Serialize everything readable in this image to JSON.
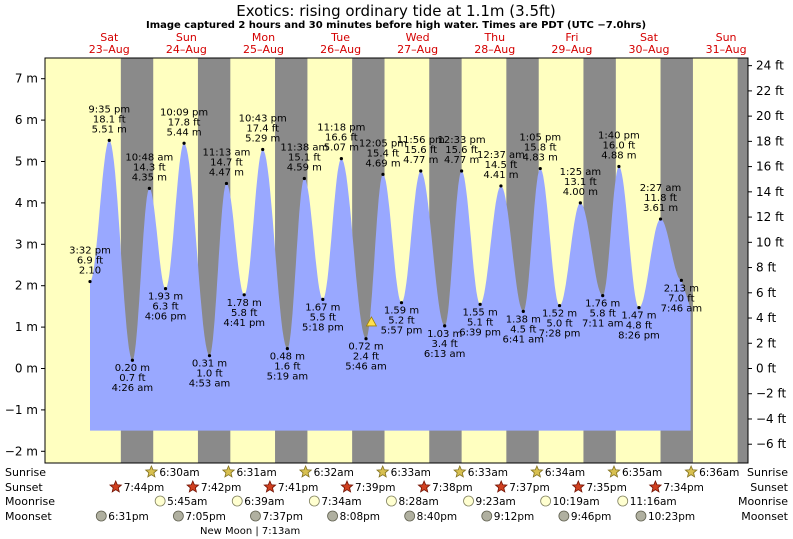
{
  "title": "Exotics: rising  ordinary tide at 1.1m (3.5ft)",
  "subtitle": "Image captured 2 hours and 30 minutes before high water. Times are PDT (UTC −7.0hrs)",
  "colors": {
    "day": "#ffffc0",
    "night": "#8a8a8a",
    "water": "#99a8ff",
    "header_red": "#d40000"
  },
  "chart_data": {
    "type": "area",
    "ylabel_left_unit": "m",
    "ylabel_right_unit": "ft",
    "ylim_m": [
      -2.2,
      7.5
    ],
    "y_ticks_m": [
      "7 m",
      "6 m",
      "5 m",
      "4 m",
      "3 m",
      "2 m",
      "1 m",
      "0 m",
      "−1 m",
      "−2 m"
    ],
    "y_ticks_m_values": [
      7,
      6,
      5,
      4,
      3,
      2,
      1,
      0,
      -1,
      -2
    ],
    "y_ticks_ft": [
      "24 ft",
      "22 ft",
      "20 ft",
      "18 ft",
      "16 ft",
      "14 ft",
      "12 ft",
      "10 ft",
      "8 ft",
      "6 ft",
      "4 ft",
      "2 ft",
      "0 ft",
      "−2 ft",
      "−4 ft",
      "−6 ft"
    ],
    "y_ticks_ft_values": [
      24,
      22,
      20,
      18,
      16,
      14,
      12,
      10,
      8,
      6,
      4,
      2,
      0,
      -2,
      -4,
      -6
    ],
    "current_level_m": 1.1,
    "days": [
      {
        "dow": "Sat",
        "date": "23–Aug"
      },
      {
        "dow": "Sun",
        "date": "24–Aug"
      },
      {
        "dow": "Mon",
        "date": "25–Aug"
      },
      {
        "dow": "Tue",
        "date": "26–Aug"
      },
      {
        "dow": "Wed",
        "date": "27–Aug"
      },
      {
        "dow": "Thu",
        "date": "28–Aug"
      },
      {
        "dow": "Fri",
        "date": "29–Aug"
      },
      {
        "dow": "Sat",
        "date": "30–Aug"
      },
      {
        "dow": "Sun",
        "date": "31–Aug"
      }
    ],
    "tides": [
      {
        "day": 0.0,
        "h": 2.1,
        "m": "2.10",
        "ft": "6.9 ft",
        "time": "3:32 pm",
        "pos": "above"
      },
      {
        "day": 0.25,
        "h": 5.51,
        "m": "5.51 m",
        "ft": "18.1 ft",
        "time": "9:35 pm",
        "pos": "above"
      },
      {
        "day": 0.55,
        "h": 0.2,
        "m": "0.20 m",
        "ft": "0.7 ft",
        "time": "4:26 am",
        "pos": "below"
      },
      {
        "day": 0.77,
        "h": 4.35,
        "m": "4.35 m",
        "ft": "14.3 ft",
        "time": "10:48 am",
        "pos": "above"
      },
      {
        "day": 0.98,
        "h": 1.93,
        "m": "1.93 m",
        "ft": "6.3 ft",
        "time": "4:06 pm",
        "pos": "below"
      },
      {
        "day": 1.22,
        "h": 5.44,
        "m": "5.44 m",
        "ft": "17.8 ft",
        "time": "10:09 pm",
        "pos": "above"
      },
      {
        "day": 1.55,
        "h": 0.31,
        "m": "0.31 m",
        "ft": "1.0 ft",
        "time": "4:53 am",
        "pos": "below"
      },
      {
        "day": 1.77,
        "h": 4.47,
        "m": "4.47 m",
        "ft": "14.7 ft",
        "time": "11:13 am",
        "pos": "above"
      },
      {
        "day": 2.0,
        "h": 1.78,
        "m": "1.78 m",
        "ft": "5.8 ft",
        "time": "4:41 pm",
        "pos": "below"
      },
      {
        "day": 2.24,
        "h": 5.29,
        "m": "5.29 m",
        "ft": "17.4 ft",
        "time": "10:43 pm",
        "pos": "above"
      },
      {
        "day": 2.56,
        "h": 0.48,
        "m": "0.48 m",
        "ft": "1.6 ft",
        "time": "5:19 am",
        "pos": "below"
      },
      {
        "day": 2.78,
        "h": 4.59,
        "m": "4.59 m",
        "ft": "15.1 ft",
        "time": "11:38 am",
        "pos": "above"
      },
      {
        "day": 3.02,
        "h": 1.67,
        "m": "1.67 m",
        "ft": "5.5 ft",
        "time": "5:18 pm",
        "pos": "below"
      },
      {
        "day": 3.26,
        "h": 5.07,
        "m": "5.07 m",
        "ft": "16.6 ft",
        "time": "11:18 pm",
        "pos": "above"
      },
      {
        "day": 3.58,
        "h": 0.72,
        "m": "0.72 m",
        "ft": "2.4 ft",
        "time": "5:46 am",
        "pos": "below"
      },
      {
        "day": 3.8,
        "h": 4.69,
        "m": "4.69 m",
        "ft": "15.4 ft",
        "time": "12:05 pm",
        "pos": "above"
      },
      {
        "day": 4.04,
        "h": 1.59,
        "m": "1.59 m",
        "ft": "5.2 ft",
        "time": "5:57 pm",
        "pos": "below"
      },
      {
        "day": 4.29,
        "h": 4.77,
        "m": "4.77 m",
        "ft": "15.6 ft",
        "time": "11:56 pm",
        "pos": "above"
      },
      {
        "day": 4.6,
        "h": 1.03,
        "m": "1.03 m",
        "ft": "3.4 ft",
        "time": "6:13 am",
        "pos": "below"
      },
      {
        "day": 4.82,
        "h": 4.77,
        "m": "4.77 m",
        "ft": "15.6 ft",
        "time": "12:33 pm",
        "pos": "above"
      },
      {
        "day": 5.06,
        "h": 1.55,
        "m": "1.55 m",
        "ft": "5.1 ft",
        "time": "6:39 pm",
        "pos": "below"
      },
      {
        "day": 5.33,
        "h": 4.41,
        "m": "4.41 m",
        "ft": "14.5 ft",
        "time": "12:37 am",
        "pos": "above"
      },
      {
        "day": 5.62,
        "h": 1.38,
        "m": "1.38 m",
        "ft": "4.5 ft",
        "time": "6:41 am",
        "pos": "below"
      },
      {
        "day": 5.84,
        "h": 4.83,
        "m": "4.83 m",
        "ft": "15.8 ft",
        "time": "1:05 pm",
        "pos": "above"
      },
      {
        "day": 6.09,
        "h": 1.52,
        "m": "1.52 m",
        "ft": "5.0 ft",
        "time": "7:28 pm",
        "pos": "below"
      },
      {
        "day": 6.36,
        "h": 4.0,
        "m": "4.00 m",
        "ft": "13.1 ft",
        "time": "1:25 am",
        "pos": "above"
      },
      {
        "day": 6.65,
        "h": 1.76,
        "m": "1.76 m",
        "ft": "5.8 ft",
        "time": "7:11 am",
        "pos": "below"
      },
      {
        "day": 6.86,
        "h": 4.88,
        "m": "4.88 m",
        "ft": "16.0 ft",
        "time": "1:40 pm",
        "pos": "above"
      },
      {
        "day": 7.12,
        "h": 1.47,
        "m": "1.47 m",
        "ft": "4.8 ft",
        "time": "8:26 pm",
        "pos": "below"
      },
      {
        "day": 7.4,
        "h": 3.61,
        "m": "3.61 m",
        "ft": "11.8 ft",
        "time": "2:27 am",
        "pos": "above"
      },
      {
        "day": 7.67,
        "h": 2.13,
        "m": "2.13 m",
        "ft": "7.0 ft",
        "time": "7:46 am",
        "pos": "below"
      }
    ]
  },
  "astro_labels": {
    "sunrise": "Sunrise",
    "sunset": "Sunset",
    "moonrise": "Moonrise",
    "moonset": "Moonset"
  },
  "sunrise": [
    {
      "day": 1,
      "time": "6:30am"
    },
    {
      "day": 2,
      "time": "6:31am"
    },
    {
      "day": 3,
      "time": "6:32am"
    },
    {
      "day": 4,
      "time": "6:33am"
    },
    {
      "day": 5,
      "time": "6:33am"
    },
    {
      "day": 6,
      "time": "6:34am"
    },
    {
      "day": 7,
      "time": "6:35am"
    },
    {
      "day": 8,
      "time": "6:36am"
    }
  ],
  "sunset": [
    {
      "day": 1,
      "time": "7:44pm"
    },
    {
      "day": 2,
      "time": "7:42pm"
    },
    {
      "day": 3,
      "time": "7:41pm"
    },
    {
      "day": 4,
      "time": "7:39pm"
    },
    {
      "day": 5,
      "time": "7:38pm"
    },
    {
      "day": 6,
      "time": "7:37pm"
    },
    {
      "day": 7,
      "time": "7:35pm"
    },
    {
      "day": 8,
      "time": "7:34pm"
    }
  ],
  "moonrise": [
    {
      "day": 1,
      "time": "5:45am"
    },
    {
      "day": 2,
      "time": "6:39am"
    },
    {
      "day": 3,
      "time": "7:34am"
    },
    {
      "day": 4,
      "time": "8:28am"
    },
    {
      "day": 5,
      "time": "9:23am"
    },
    {
      "day": 6,
      "time": "10:19am"
    },
    {
      "day": 7,
      "time": "11:16am"
    }
  ],
  "moonset": [
    {
      "day": 1,
      "time": "6:31pm"
    },
    {
      "day": 2,
      "time": "7:05pm"
    },
    {
      "day": 3,
      "time": "7:37pm"
    },
    {
      "day": 4,
      "time": "8:08pm"
    },
    {
      "day": 5,
      "time": "8:40pm"
    },
    {
      "day": 6,
      "time": "9:12pm"
    },
    {
      "day": 7,
      "time": "9:46pm"
    },
    {
      "day": 8,
      "time": "10:23pm"
    }
  ],
  "new_moon": "New Moon | 7:13am"
}
